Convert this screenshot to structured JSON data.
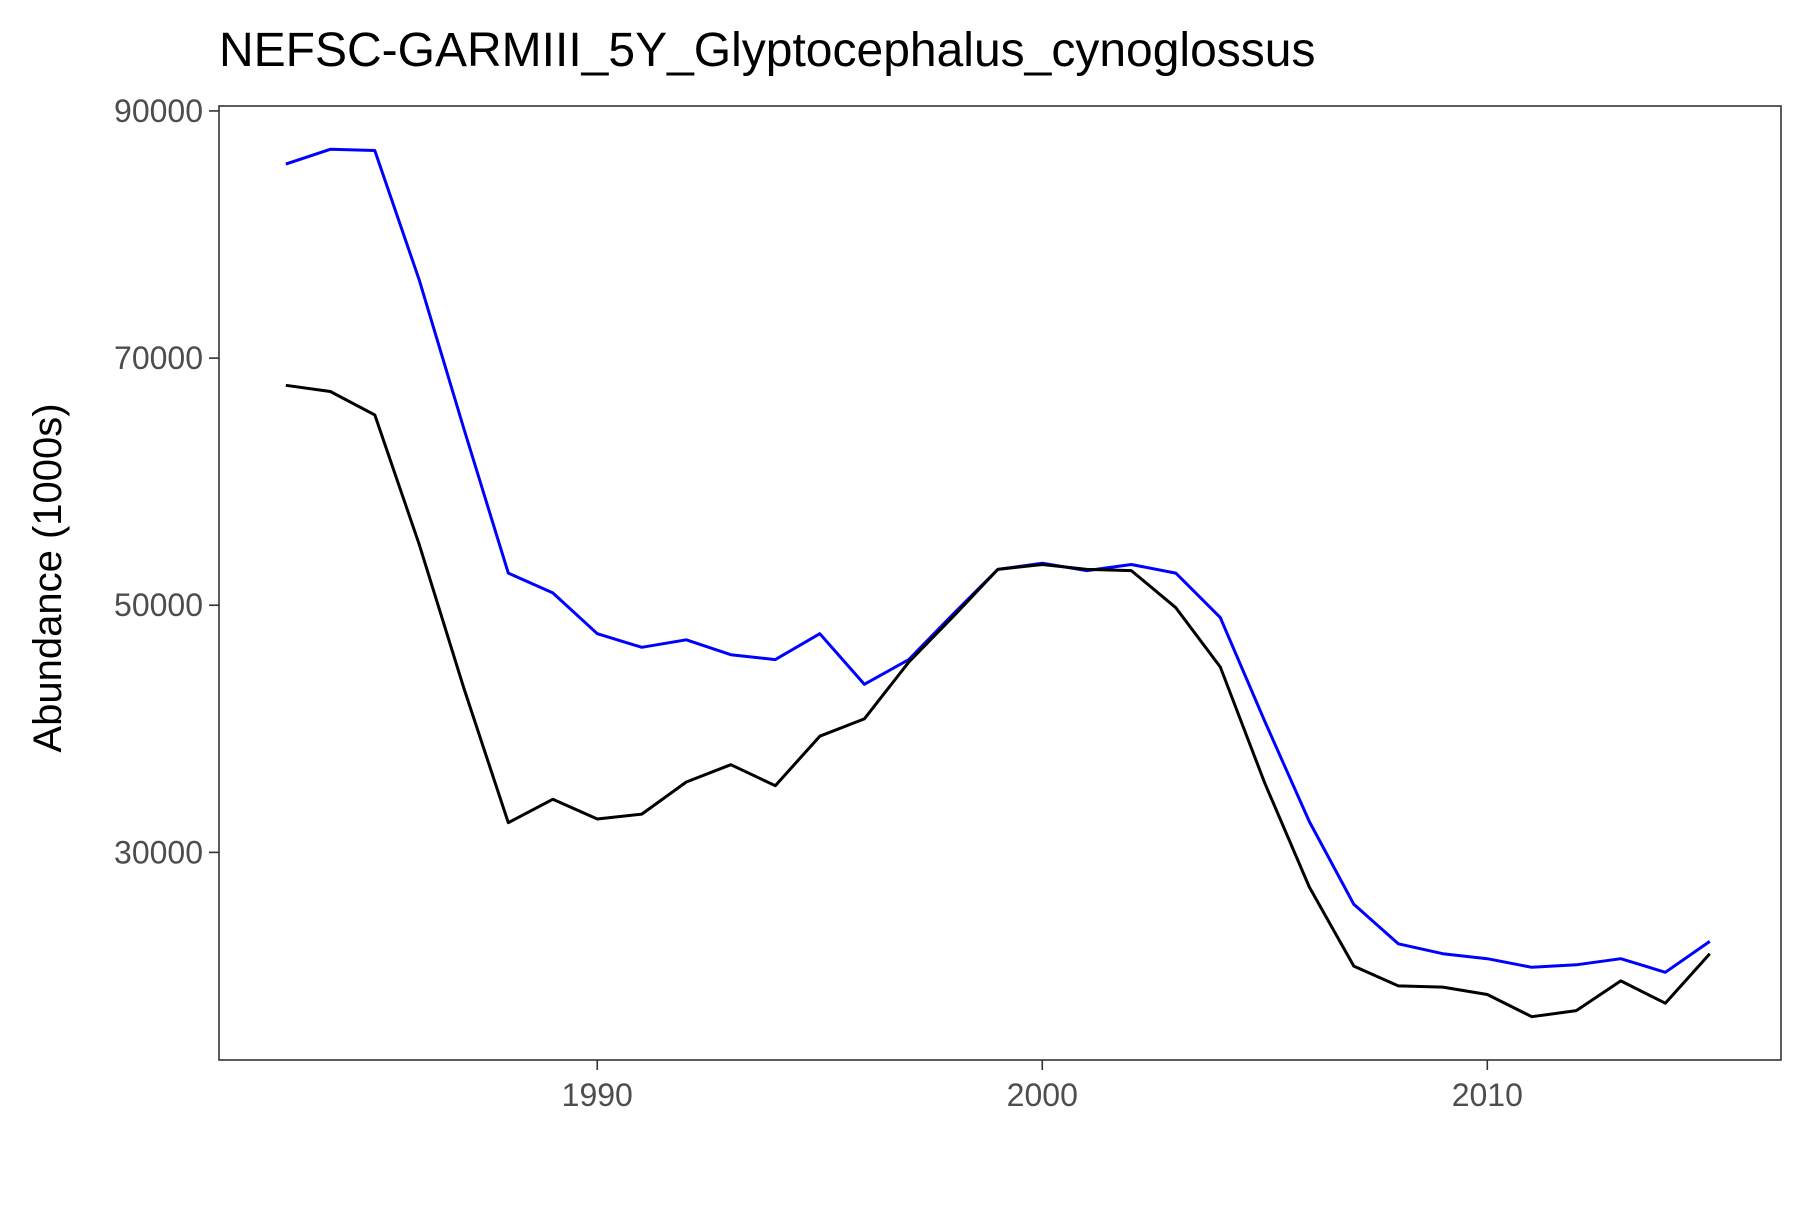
{
  "chart_data": {
    "type": "line",
    "title": "NEFSC-GARMIII_5Y_Glyptocephalus_cynoglossus",
    "xlabel": "",
    "ylabel": "Abundance (1000s)",
    "xlim": [
      1981.5,
      2016.6
    ],
    "ylim": [
      13200,
      90400
    ],
    "x_ticks": [
      1990,
      2000,
      2010
    ],
    "y_ticks": [
      30000,
      50000,
      70000,
      90000
    ],
    "grid": false,
    "legend": "none",
    "x": [
      1983,
      1984,
      1985,
      1986,
      1987,
      1988,
      1989,
      1990,
      1991,
      1992,
      1993,
      1994,
      1995,
      1996,
      1997,
      1998,
      1999,
      2000,
      2001,
      2002,
      2003,
      2004,
      2005,
      2006,
      2007,
      2008,
      2009,
      2010,
      2011,
      2012,
      2013,
      2014,
      2015
    ],
    "series": [
      {
        "color": "#0000ff",
        "values": [
          85700,
          86900,
          86800,
          76300,
          64300,
          52600,
          51000,
          47700,
          46600,
          47200,
          46000,
          45600,
          47700,
          43600,
          45600,
          49300,
          52900,
          53400,
          52800,
          53300,
          52600,
          49000,
          40600,
          32500,
          25800,
          22600,
          21800,
          21400,
          20700,
          20900,
          21400,
          20300,
          22800
        ]
      },
      {
        "color": "#000000",
        "values": [
          67800,
          67300,
          65400,
          54900,
          43300,
          32400,
          34300,
          32700,
          33100,
          35700,
          37100,
          35400,
          39400,
          40800,
          45400,
          49100,
          52900,
          53300,
          52900,
          52800,
          49800,
          45000,
          35600,
          27200,
          20800,
          19200,
          19100,
          18500,
          16700,
          17200,
          19600,
          17800,
          21800
        ]
      }
    ]
  }
}
